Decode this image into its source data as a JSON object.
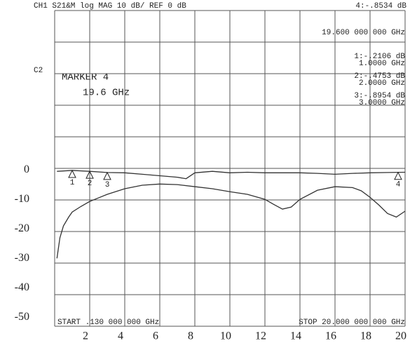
{
  "chart_data": {
    "type": "line",
    "header": "CH1 S21&M log MAG   10 dB/  REF 0 dB",
    "marker_readout": "4:-.8534  dB",
    "channel_label": "C2",
    "marker_title": "MARKER 4",
    "marker_freq": "19.6 GHz",
    "marker_freq_full": "19.600 000 000 GHz",
    "start_label": "START  .130 000 000 GHz",
    "stop_label": "STOP 20.000 000 000 GHz",
    "markers": [
      {
        "label": "1",
        "x": 1,
        "y": -0.2106,
        "value_label": "1:-.2106  dB",
        "freq_label": "1.0000 GHz"
      },
      {
        "label": "2",
        "x": 2,
        "y": -0.4753,
        "value_label": "2:-.4753  dB",
        "freq_label": "2.0000 GHz"
      },
      {
        "label": "3",
        "x": 3,
        "y": -0.8954,
        "value_label": "3:-.8954  dB",
        "freq_label": "3.0000 GHz"
      },
      {
        "label": "4",
        "x": 19.6,
        "y": -0.8534
      }
    ],
    "xlim": [
      0,
      20
    ],
    "ylim": [
      -53,
      54
    ],
    "xticks": [
      2,
      4,
      6,
      8,
      10,
      12,
      14,
      16,
      18,
      20
    ],
    "yticks": [
      0,
      -10,
      -20,
      -30,
      -40,
      -50
    ],
    "series": [
      {
        "color": "#333",
        "x": [
          0.13,
          1,
          2,
          3,
          4,
          5,
          6,
          7,
          7.5,
          8,
          9,
          10,
          11,
          12,
          13,
          14,
          15,
          16,
          17,
          18,
          19,
          20
        ],
        "values": [
          -0.5,
          -0.2,
          -0.5,
          -0.9,
          -1,
          -1.5,
          -2,
          -2.5,
          -3,
          -1,
          -0.5,
          -1,
          -0.8,
          -1,
          -1,
          -1,
          -1.2,
          -1.5,
          -1.2,
          -1,
          -0.9,
          -0.8
        ]
      },
      {
        "color": "#333",
        "x": [
          0.13,
          0.3,
          0.5,
          0.8,
          1,
          1.5,
          2,
          2.5,
          3,
          4,
          5,
          6,
          7,
          8,
          9,
          10,
          11,
          12,
          12.5,
          13,
          13.5,
          14,
          15,
          16,
          17,
          17.5,
          18,
          18.5,
          19,
          19.5,
          20
        ],
        "values": [
          -30,
          -23,
          -19,
          -16,
          -14.3,
          -12.4,
          -10.7,
          -9.5,
          -8.3,
          -6.4,
          -5.2,
          -4.8,
          -5,
          -5.7,
          -6.4,
          -7.4,
          -8.3,
          -10,
          -11.7,
          -13.3,
          -12.6,
          -10,
          -6.9,
          -5.7,
          -6,
          -7.1,
          -9.3,
          -11.9,
          -14.8,
          -16,
          -14
        ]
      }
    ]
  }
}
